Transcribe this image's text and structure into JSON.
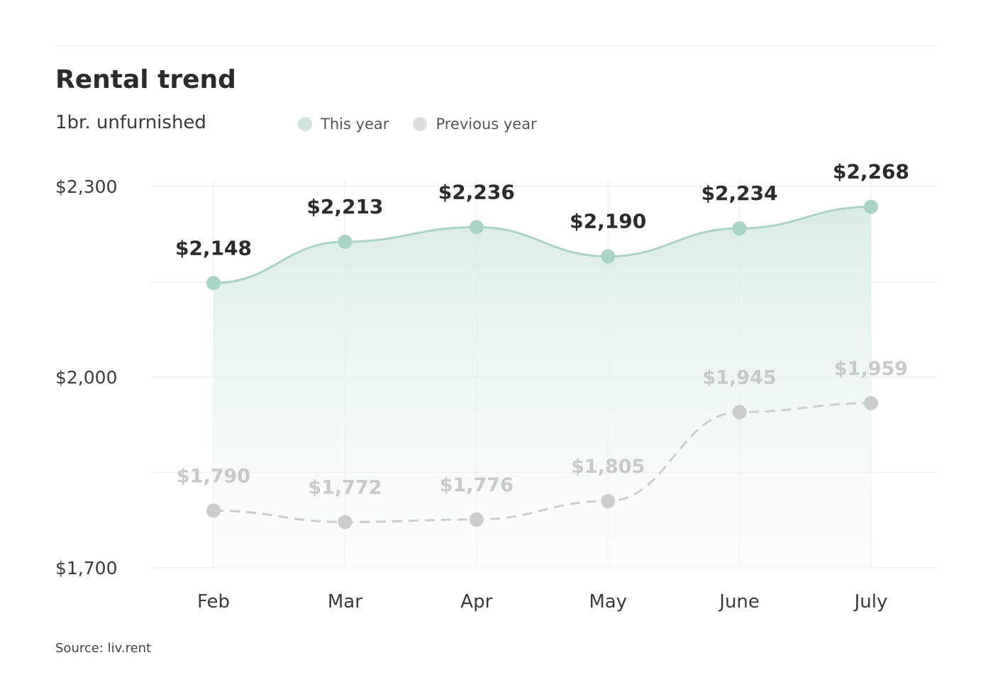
{
  "title": "Rental trend",
  "subtitle": "1br. unfurnished",
  "source": "Source: liv.rent",
  "legend": [
    {
      "label": "This year",
      "color": "#cfe6dc"
    },
    {
      "label": "Previous year",
      "color": "#dddddd"
    }
  ],
  "chart_data": {
    "type": "line",
    "title": "Rental trend",
    "subtitle": "1br. unfurnished",
    "categories": [
      "Feb",
      "Mar",
      "Apr",
      "May",
      "June",
      "July"
    ],
    "series": [
      {
        "name": "This year",
        "values": [
          2148,
          2213,
          2236,
          2190,
          2234,
          2268
        ],
        "labels": [
          "$2,148",
          "$2,213",
          "$2,236",
          "$2,190",
          "$2,234",
          "$2,268"
        ],
        "color": "#a9d4c3",
        "style": "solid",
        "area_fill": true
      },
      {
        "name": "Previous year",
        "values": [
          1790,
          1772,
          1776,
          1805,
          1945,
          1959
        ],
        "labels": [
          "$1,790",
          "$1,772",
          "$1,776",
          "$1,805",
          "$1,945",
          "$1,959"
        ],
        "color": "#cccccc",
        "style": "dashed",
        "area_fill": false
      }
    ],
    "y_ticks": [
      {
        "value": 2300,
        "label": "$2,300"
      },
      {
        "value": 2000,
        "label": "$2,000"
      },
      {
        "value": 1700,
        "label": "$1,700"
      }
    ],
    "ylim": [
      1700,
      2300
    ],
    "grid": true,
    "legend_position": "top"
  }
}
